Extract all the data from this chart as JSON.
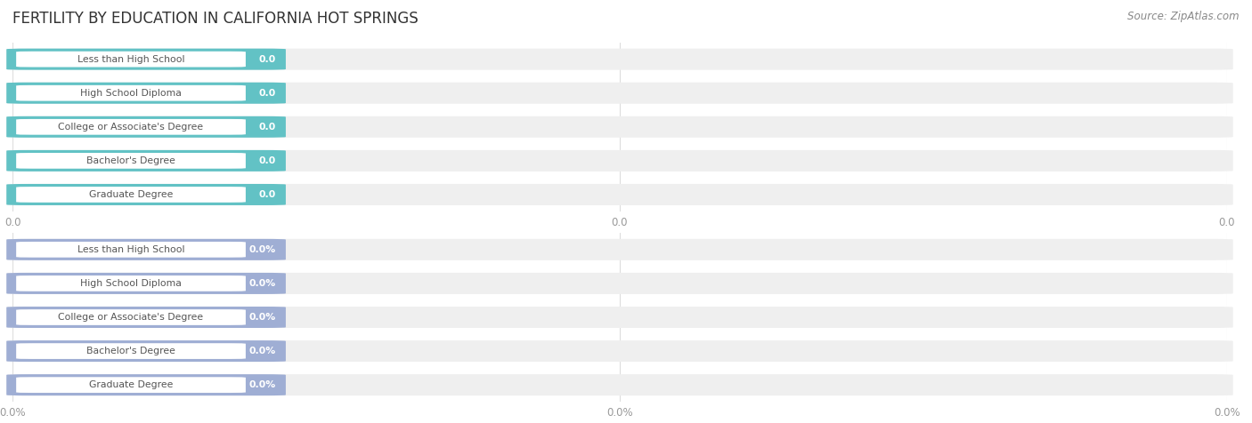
{
  "title": "FERTILITY BY EDUCATION IN CALIFORNIA HOT SPRINGS",
  "source_text": "Source: ZipAtlas.com",
  "categories": [
    "Less than High School",
    "High School Diploma",
    "College or Associate's Degree",
    "Bachelor's Degree",
    "Graduate Degree"
  ],
  "values_top": [
    0.0,
    0.0,
    0.0,
    0.0,
    0.0
  ],
  "values_bottom": [
    0.0,
    0.0,
    0.0,
    0.0,
    0.0
  ],
  "bar_color_top": "#62c2c5",
  "bar_color_bottom": "#9faed4",
  "value_label_top": [
    "0.0",
    "0.0",
    "0.0",
    "0.0",
    "0.0"
  ],
  "value_label_bottom": [
    "0.0%",
    "0.0%",
    "0.0%",
    "0.0%",
    "0.0%"
  ],
  "xtick_labels_top": [
    "0.0",
    "0.0",
    "0.0"
  ],
  "xtick_labels_bottom": [
    "0.0%",
    "0.0%",
    "0.0%"
  ],
  "background_color": "#ffffff",
  "bar_bg_color": "#efefef",
  "title_fontsize": 12,
  "bar_height": 0.62,
  "figsize": [
    14.06,
    4.76
  ],
  "dpi": 100
}
